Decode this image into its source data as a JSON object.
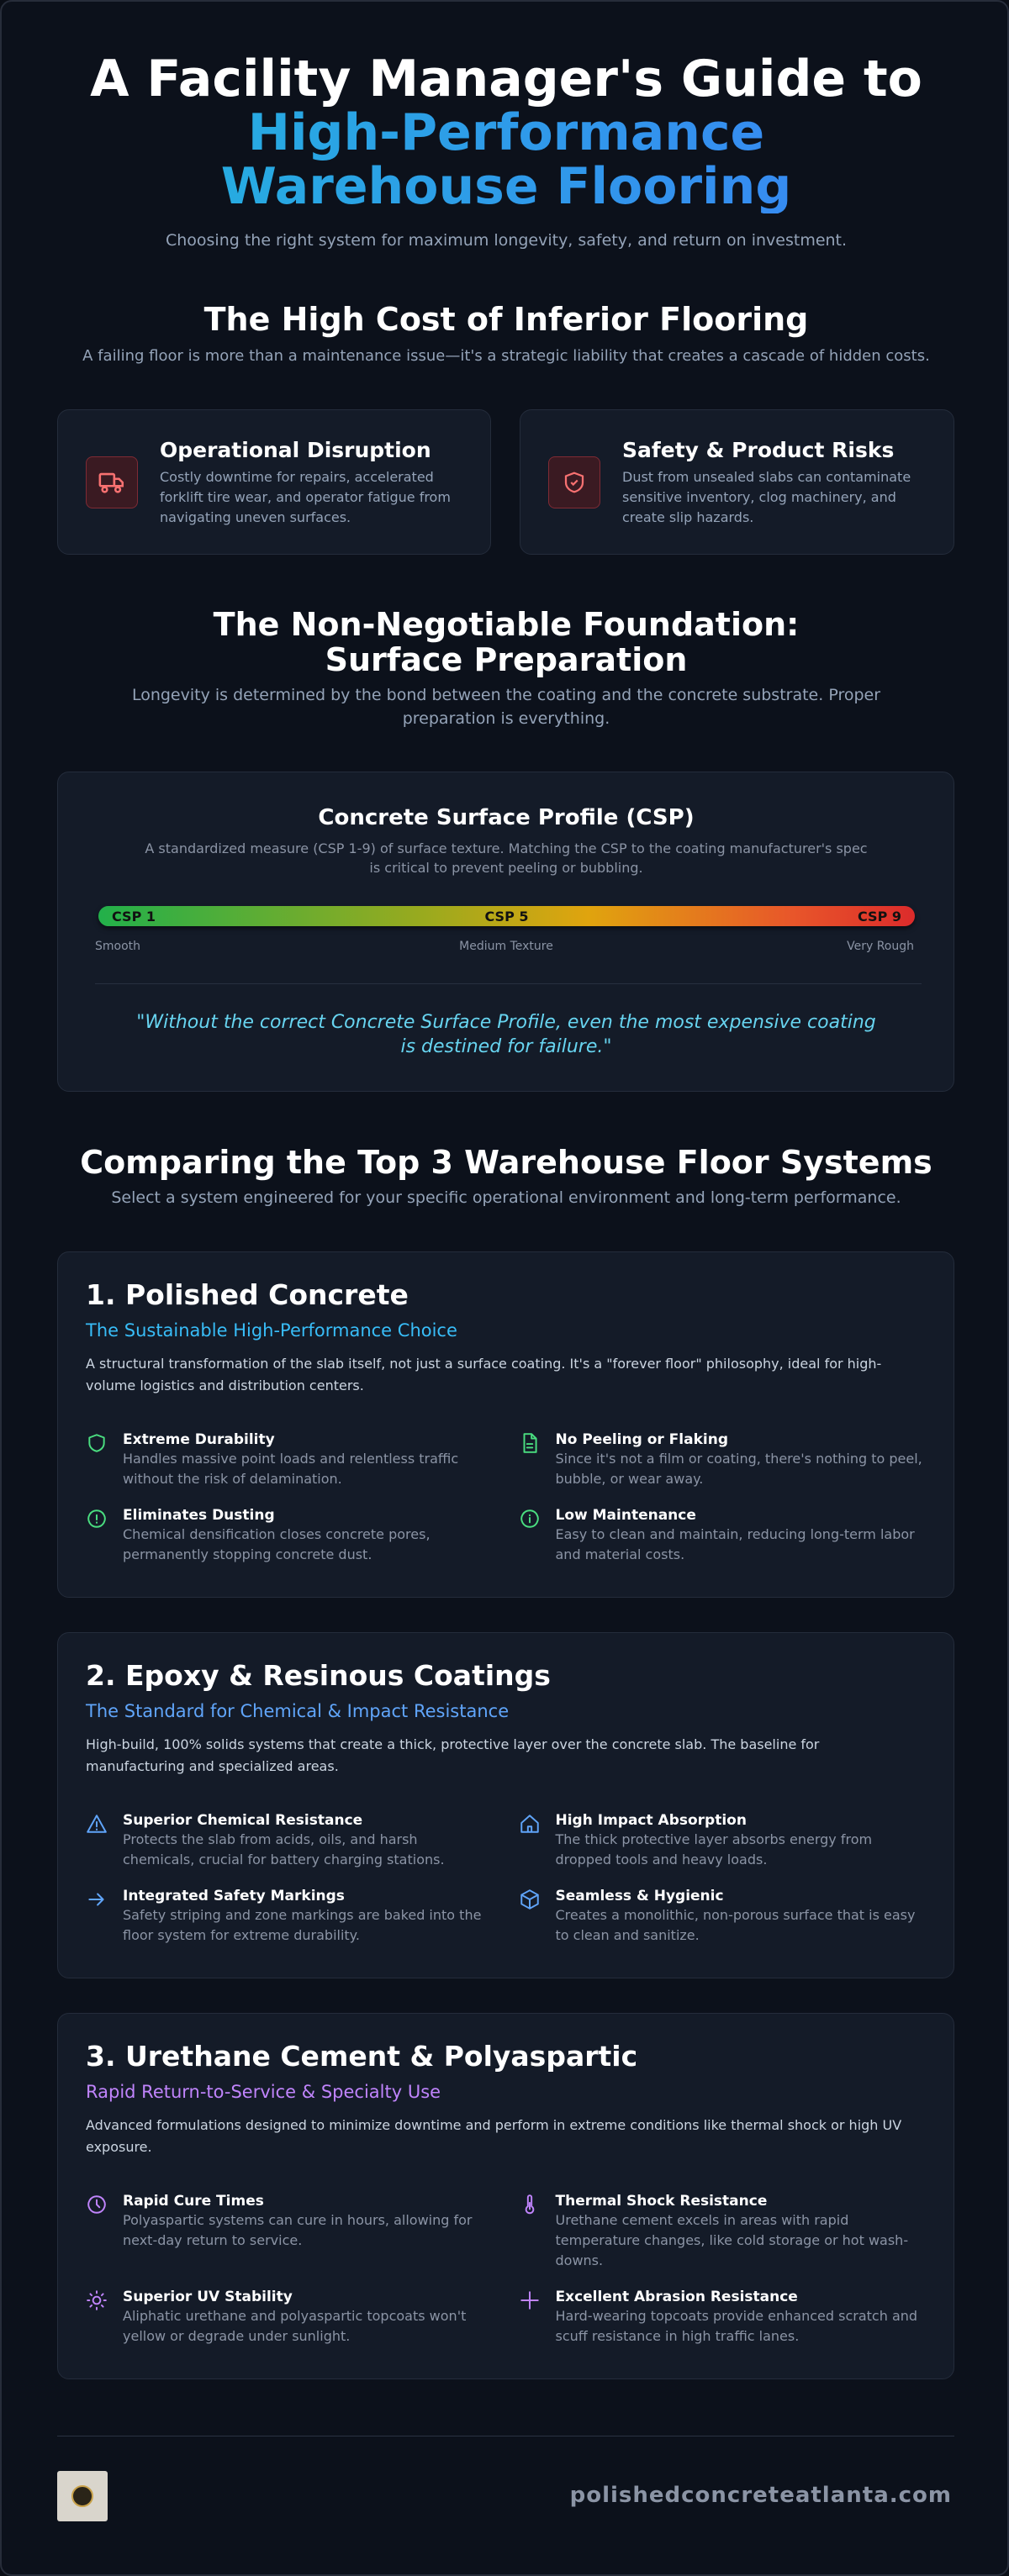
{
  "header": {
    "title": "A Facility Manager's Guide to",
    "title_highlight": "High-Performance Warehouse Flooring",
    "subtitle": "Choosing the right system for maximum longevity, safety, and return on investment."
  },
  "cost_section": {
    "heading": "The High Cost of Inferior Flooring",
    "description": "A failing floor is more than a maintenance issue—it's a strategic liability that creates a cascade of hidden costs.",
    "cards": [
      {
        "title": "Operational Disruption",
        "text": "Costly downtime for repairs, accelerated forklift tire wear, and operator fatigue from navigating uneven surfaces."
      },
      {
        "title": "Safety & Product Risks",
        "text": "Dust from unsealed slabs can contaminate sensitive inventory, clog machinery, and create slip hazards."
      }
    ]
  },
  "preparation": {
    "heading": "The Non-Negotiable Foundation: Surface Preparation",
    "description": "Longevity is determined by the bond between the coating and the concrete substrate. Proper preparation is everything.",
    "csp": {
      "title": "Concrete Surface Profile (CSP)",
      "description": "A standardized measure (CSP 1-9) of surface texture. Matching the CSP to the coating manufacturer's spec is critical to prevent peeling or bubbling.",
      "scale_labels": [
        "CSP 1",
        "CSP 5",
        "CSP 9"
      ],
      "texture_labels": [
        "Smooth",
        "Medium Texture",
        "Very Rough"
      ],
      "quote": "\"Without the correct Concrete Surface Profile, even the most expensive coating is destined for failure.\""
    }
  },
  "comparison": {
    "heading": "Comparing the Top 3 Warehouse Floor Systems",
    "description": "Select a system engineered for your specific operational environment and long-term performance.",
    "systems": [
      {
        "title": "1. Polished Concrete",
        "subtitle": "The Sustainable High-Performance Choice",
        "description": "A structural transformation of the slab itself, not just a surface coating. It's a \"forever floor\" philosophy, ideal for high-volume logistics and distribution centers.",
        "features": [
          {
            "title": "Extreme Durability",
            "text": "Handles massive point loads and relentless traffic without the risk of delamination."
          },
          {
            "title": "No Peeling or Flaking",
            "text": "Since it's not a film or coating, there's nothing to peel, bubble, or wear away."
          },
          {
            "title": "Eliminates Dusting",
            "text": "Chemical densification closes concrete pores, permanently stopping concrete dust."
          },
          {
            "title": "Low Maintenance",
            "text": "Easy to clean and maintain, reducing long-term labor and material costs."
          }
        ]
      },
      {
        "title": "2. Epoxy & Resinous Coatings",
        "subtitle": "The Standard for Chemical & Impact Resistance",
        "description": "High-build, 100% solids systems that create a thick, protective layer over the concrete slab. The baseline for manufacturing and specialized areas.",
        "features": [
          {
            "title": "Superior Chemical Resistance",
            "text": "Protects the slab from acids, oils, and harsh chemicals, crucial for battery charging stations."
          },
          {
            "title": "High Impact Absorption",
            "text": "The thick protective layer absorbs energy from dropped tools and heavy loads."
          },
          {
            "title": "Integrated Safety Markings",
            "text": "Safety striping and zone markings are baked into the floor system for extreme durability."
          },
          {
            "title": "Seamless & Hygienic",
            "text": "Creates a monolithic, non-porous surface that is easy to clean and sanitize."
          }
        ]
      },
      {
        "title": "3. Urethane Cement & Polyaspartic",
        "subtitle": "Rapid Return-to-Service & Specialty Use",
        "description": "Advanced formulations designed to minimize downtime and perform in extreme conditions like thermal shock or high UV exposure.",
        "features": [
          {
            "title": "Rapid Cure Times",
            "text": "Polyaspartic systems can cure in hours, allowing for next-day return to service."
          },
          {
            "title": "Thermal Shock Resistance",
            "text": "Urethane cement excels in areas with rapid temperature changes, like cold storage or hot wash-downs."
          },
          {
            "title": "Superior UV Stability",
            "text": "Aliphatic urethane and polyaspartic topcoats won't yellow or degrade under sunlight."
          },
          {
            "title": "Excellent Abrasion Resistance",
            "text": "Hard-wearing topcoats provide enhanced scratch and scuff resistance in high traffic lanes."
          }
        ]
      }
    ]
  },
  "footer": {
    "url": "polishedconcreteatlanta.com"
  }
}
